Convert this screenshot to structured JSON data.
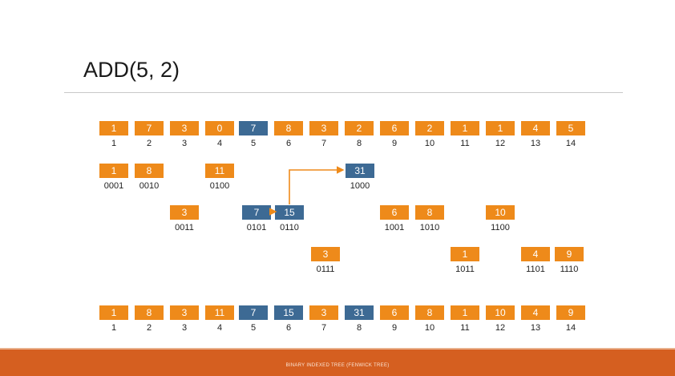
{
  "title": "ADD(5, 2)",
  "footer": "BINARY INDEXED TREE (FENWICK TREE)",
  "colors": {
    "orange": "#ee8a1a",
    "blue": "#3d6a94",
    "footer": "#d55f20"
  },
  "top_array": {
    "values": [
      "1",
      "7",
      "3",
      "0",
      "7",
      "8",
      "3",
      "2",
      "6",
      "2",
      "1",
      "1",
      "4",
      "5"
    ],
    "indices": [
      "1",
      "2",
      "3",
      "4",
      "5",
      "6",
      "7",
      "8",
      "9",
      "10",
      "11",
      "12",
      "13",
      "14"
    ],
    "highlight": [
      5
    ]
  },
  "tree_nodes": [
    {
      "value": "1",
      "label": "0001",
      "index": 1,
      "highlight": false
    },
    {
      "value": "8",
      "label": "0010",
      "index": 2,
      "highlight": false
    },
    {
      "value": "3",
      "label": "0011",
      "index": 3,
      "highlight": false
    },
    {
      "value": "11",
      "label": "0100",
      "index": 4,
      "highlight": false
    },
    {
      "value": "7",
      "label": "0101",
      "index": 5,
      "highlight": true
    },
    {
      "value": "15",
      "label": "0110",
      "index": 6,
      "highlight": true
    },
    {
      "value": "3",
      "label": "0111",
      "index": 7,
      "highlight": false
    },
    {
      "value": "31",
      "label": "1000",
      "index": 8,
      "highlight": true
    },
    {
      "value": "6",
      "label": "1001",
      "index": 9,
      "highlight": false
    },
    {
      "value": "8",
      "label": "1010",
      "index": 10,
      "highlight": false
    },
    {
      "value": "1",
      "label": "1011",
      "index": 11,
      "highlight": false
    },
    {
      "value": "10",
      "label": "1100",
      "index": 12,
      "highlight": false
    },
    {
      "value": "4",
      "label": "1101",
      "index": 13,
      "highlight": false
    },
    {
      "value": "9",
      "label": "1110",
      "index": 14,
      "highlight": false
    }
  ],
  "bottom_array": {
    "values": [
      "1",
      "8",
      "3",
      "11",
      "7",
      "15",
      "3",
      "31",
      "6",
      "8",
      "1",
      "10",
      "4",
      "9"
    ],
    "indices": [
      "1",
      "2",
      "3",
      "4",
      "5",
      "6",
      "7",
      "8",
      "9",
      "10",
      "11",
      "12",
      "13",
      "14"
    ],
    "highlight": [
      5,
      6,
      8
    ]
  }
}
